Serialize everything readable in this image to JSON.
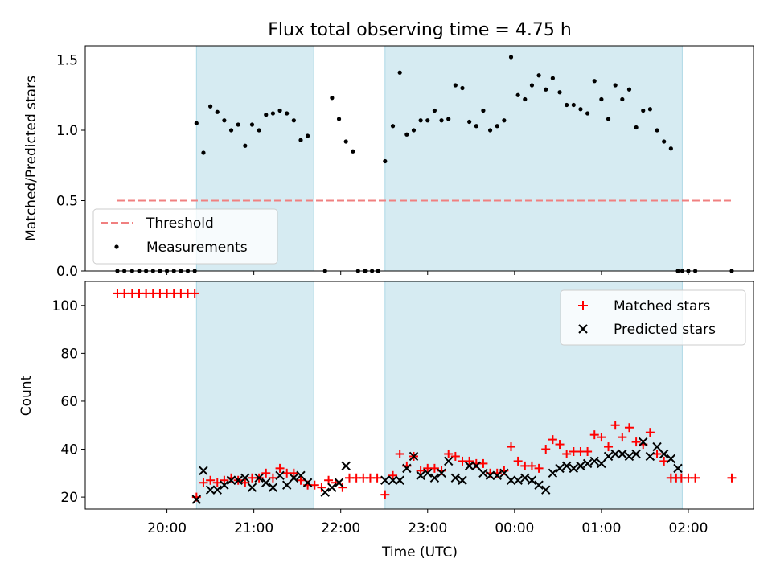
{
  "chart_data": {
    "title": "Flux total observing time = 4.75 h",
    "xlabel": "Time (UTC)",
    "x_ticks": [
      "20:00",
      "21:00",
      "22:00",
      "23:00",
      "00:00",
      "01:00",
      "02:00"
    ],
    "x_tick_hours": [
      20,
      21,
      22,
      23,
      24,
      25,
      26
    ],
    "xlim_hours": [
      19.06,
      26.75
    ],
    "shaded_intervals_hours": [
      [
        20.34,
        21.69
      ],
      [
        22.51,
        25.93
      ]
    ],
    "colors": {
      "shade": "#add8e6",
      "threshold": "#f08080",
      "matched": "#ff0000",
      "predicted": "#000000",
      "measurement": "#000000"
    },
    "panels": [
      {
        "type": "scatter",
        "ylabel": "Matched/Predicted stars",
        "ylim": [
          0,
          1.6
        ],
        "yticks": [
          0.0,
          0.5,
          1.0,
          1.5
        ],
        "ytick_labels": [
          "0.0",
          "0.5",
          "1.0",
          "1.5"
        ],
        "legend": {
          "location": "lower-left",
          "entries": [
            "Threshold",
            "Measurements"
          ]
        },
        "threshold": {
          "name": "Threshold",
          "value": 0.5,
          "x_range_hours": [
            19.43,
            26.5
          ],
          "style": "dashed"
        },
        "series": [
          {
            "name": "Measurements",
            "x": [
              19.43,
              19.51,
              19.6,
              19.68,
              19.76,
              19.84,
              19.92,
              20.0,
              20.08,
              20.16,
              20.24,
              20.32,
              20.34,
              20.42,
              20.5,
              20.58,
              20.66,
              20.74,
              20.82,
              20.9,
              20.98,
              21.06,
              21.14,
              21.22,
              21.3,
              21.38,
              21.46,
              21.54,
              21.62,
              21.82,
              21.9,
              21.98,
              22.06,
              22.14,
              22.2,
              22.28,
              22.36,
              22.43,
              22.51,
              22.6,
              22.68,
              22.76,
              22.84,
              22.92,
              23.0,
              23.08,
              23.16,
              23.24,
              23.32,
              23.4,
              23.48,
              23.56,
              23.64,
              23.72,
              23.8,
              23.88,
              23.96,
              24.04,
              24.12,
              24.2,
              24.28,
              24.36,
              24.44,
              24.52,
              24.6,
              24.68,
              24.76,
              24.84,
              24.92,
              25.0,
              25.08,
              25.16,
              25.24,
              25.32,
              25.4,
              25.48,
              25.56,
              25.64,
              25.72,
              25.8,
              25.88,
              25.93,
              26.0,
              26.08,
              26.5
            ],
            "y": [
              0,
              0,
              0,
              0,
              0,
              0,
              0,
              0,
              0,
              0,
              0,
              0,
              1.05,
              0.84,
              1.17,
              1.13,
              1.07,
              1.0,
              1.04,
              0.89,
              1.04,
              1.0,
              1.11,
              1.12,
              1.14,
              1.12,
              1.07,
              0.93,
              0.96,
              0,
              1.23,
              1.08,
              0.92,
              0.85,
              0,
              0,
              0,
              0,
              0.78,
              1.03,
              1.41,
              0.97,
              1.0,
              1.07,
              1.07,
              1.14,
              1.07,
              1.08,
              1.32,
              1.3,
              1.06,
              1.03,
              1.14,
              1.0,
              1.03,
              1.07,
              1.52,
              1.25,
              1.22,
              1.32,
              1.39,
              1.29,
              1.37,
              1.27,
              1.18,
              1.18,
              1.15,
              1.12,
              1.35,
              1.22,
              1.08,
              1.32,
              1.22,
              1.29,
              1.02,
              1.14,
              1.15,
              1.0,
              0.92,
              0.87,
              0,
              0,
              0,
              0,
              0
            ]
          }
        ]
      },
      {
        "type": "scatter",
        "ylabel": "Count",
        "ylim": [
          15,
          110
        ],
        "yticks": [
          20,
          40,
          60,
          80,
          100
        ],
        "ytick_labels": [
          "20",
          "40",
          "60",
          "80",
          "100"
        ],
        "legend": {
          "location": "upper-right",
          "entries": [
            "Matched stars",
            "Predicted stars"
          ]
        },
        "series": [
          {
            "name": "Matched stars",
            "marker": "+",
            "x": [
              19.43,
              19.51,
              19.6,
              19.68,
              19.76,
              19.84,
              19.92,
              20.0,
              20.08,
              20.16,
              20.24,
              20.32,
              20.34,
              20.42,
              20.5,
              20.58,
              20.66,
              20.74,
              20.82,
              20.9,
              20.98,
              21.06,
              21.14,
              21.22,
              21.3,
              21.38,
              21.46,
              21.54,
              21.62,
              21.7,
              21.78,
              21.86,
              21.94,
              22.02,
              22.1,
              22.18,
              22.26,
              22.34,
              22.42,
              22.51,
              22.6,
              22.68,
              22.76,
              22.84,
              22.92,
              23.0,
              23.08,
              23.16,
              23.24,
              23.32,
              23.4,
              23.48,
              23.56,
              23.64,
              23.72,
              23.8,
              23.88,
              23.96,
              24.04,
              24.12,
              24.2,
              24.28,
              24.36,
              24.44,
              24.52,
              24.6,
              24.68,
              24.76,
              24.84,
              24.92,
              25.0,
              25.08,
              25.16,
              25.24,
              25.32,
              25.4,
              25.48,
              25.56,
              25.64,
              25.72,
              25.8,
              25.86,
              25.92,
              26.0,
              26.08,
              26.5
            ],
            "y": [
              105,
              105,
              105,
              105,
              105,
              105,
              105,
              105,
              105,
              105,
              105,
              105,
              20,
              26,
              27,
              26,
              27,
              28,
              27,
              26,
              28,
              28,
              30,
              28,
              32,
              30,
              30,
              27,
              25,
              25,
              24,
              27,
              26,
              24,
              28,
              28,
              28,
              28,
              28,
              21,
              29,
              38,
              33,
              37,
              31,
              32,
              32,
              31,
              38,
              37,
              35,
              35,
              34,
              34,
              30,
              30,
              31,
              41,
              35,
              33,
              33,
              32,
              40,
              44,
              42,
              38,
              39,
              39,
              39,
              46,
              45,
              41,
              50,
              45,
              49,
              43,
              42,
              47,
              38,
              35,
              28,
              28,
              28,
              28,
              28,
              28
            ]
          },
          {
            "name": "Predicted stars",
            "marker": "x",
            "x": [
              20.34,
              20.42,
              20.5,
              20.58,
              20.66,
              20.74,
              20.82,
              20.9,
              20.98,
              21.06,
              21.14,
              21.22,
              21.3,
              21.38,
              21.46,
              21.54,
              21.62,
              21.82,
              21.9,
              21.98,
              22.06,
              22.51,
              22.6,
              22.68,
              22.76,
              22.84,
              22.92,
              23.0,
              23.08,
              23.16,
              23.24,
              23.32,
              23.4,
              23.48,
              23.56,
              23.64,
              23.72,
              23.8,
              23.88,
              23.96,
              24.04,
              24.12,
              24.2,
              24.28,
              24.36,
              24.44,
              24.52,
              24.6,
              24.68,
              24.76,
              24.84,
              24.92,
              25.0,
              25.08,
              25.16,
              25.24,
              25.32,
              25.4,
              25.48,
              25.56,
              25.64,
              25.72,
              25.8,
              25.88
            ],
            "y": [
              19,
              31,
              23,
              23,
              25,
              27,
              27,
              28,
              24,
              28,
              26,
              24,
              29,
              25,
              28,
              29,
              26,
              22,
              24,
              26,
              33,
              27,
              27,
              27,
              32,
              37,
              29,
              30,
              28,
              30,
              35,
              28,
              27,
              33,
              33,
              30,
              29,
              29,
              30,
              27,
              27,
              28,
              27,
              25,
              23,
              30,
              32,
              33,
              32,
              33,
              34,
              35,
              34,
              37,
              38,
              38,
              37,
              38,
              43,
              37,
              41,
              38,
              36,
              32
            ]
          }
        ]
      }
    ]
  }
}
